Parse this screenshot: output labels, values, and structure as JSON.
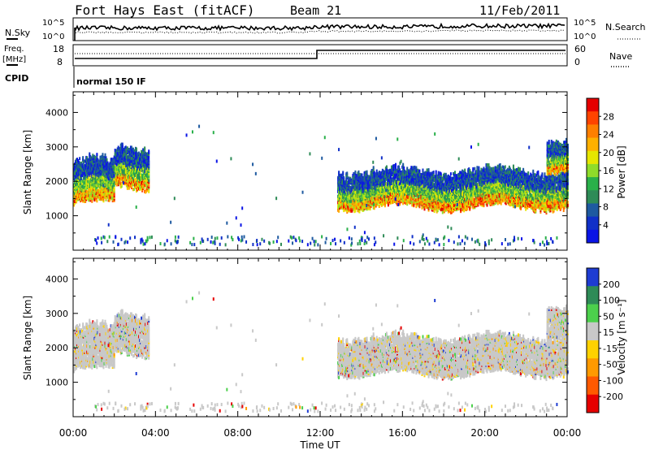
{
  "header": {
    "station": "Fort Hays East (fitACF)",
    "beam": "Beam 21",
    "date": "11/Feb/2011"
  },
  "status_panel": {
    "nsky_label": "N.Sky",
    "nsearch_label": "N.Search",
    "freq_label": "Freq.",
    "freq_unit": "[MHz]",
    "nave_label": "Nave",
    "cpid_label": "CPID",
    "cpid_value": "normal 150 IF",
    "noise_ticks": [
      "10^5",
      "10^0"
    ],
    "freq_ticks": [
      "18",
      "8"
    ],
    "nave_ticks": [
      "60",
      "0"
    ]
  },
  "colorbars": {
    "power": {
      "label": "Power [dB]",
      "ticks": [
        "28",
        "24",
        "20",
        "16",
        "12",
        "8",
        "4"
      ],
      "colors": [
        "#e60000",
        "#ff4400",
        "#ff7f00",
        "#ffb000",
        "#e6e600",
        "#8fdc2a",
        "#2ab04a",
        "#2e8b57",
        "#1e5aa0",
        "#1030c8",
        "#0a14e6"
      ]
    },
    "velocity": {
      "label": "Velocity [m s⁻¹]",
      "ticks": [
        "200",
        "100",
        "50",
        "15",
        "-15",
        "-50",
        "-100",
        "-200"
      ],
      "colors": [
        "#1e3cd2",
        "#2e8b57",
        "#4cd04c",
        "#c8c8c8",
        "#ffd200",
        "#ff9a00",
        "#ff5a00",
        "#e60000"
      ]
    }
  },
  "chart_data": [
    {
      "type": "heatmap",
      "quantity": "Power",
      "ylabel": "Slant Range [km]",
      "ylim": [
        0,
        4600
      ],
      "yticks": [
        1000,
        2000,
        3000,
        4000
      ],
      "xlim_hours": [
        0,
        24
      ],
      "colorbar_label": "Power [dB]",
      "colorbar_ticks": [
        28,
        24,
        20,
        16,
        12,
        8,
        4
      ],
      "echo_regions": [
        {
          "t_start": "00:00",
          "t_end": "02:00",
          "range_km": [
            1300,
            2700
          ]
        },
        {
          "t_start": "02:00",
          "t_end": "03:40",
          "range_km": [
            1800,
            3100
          ]
        },
        {
          "t_start": "12:50",
          "t_end": "24:00",
          "range_km": [
            1200,
            2400
          ]
        },
        {
          "t_start": "23:00",
          "t_end": "24:00",
          "range_km": [
            2300,
            3300
          ]
        }
      ]
    },
    {
      "type": "heatmap",
      "quantity": "Velocity",
      "ylabel": "Slant Range [km]",
      "ylim": [
        0,
        4600
      ],
      "yticks": [
        1000,
        2000,
        3000,
        4000
      ],
      "xlabel": "Time UT",
      "xticks": [
        "00:00",
        "04:00",
        "08:00",
        "12:00",
        "16:00",
        "20:00",
        "00:00"
      ],
      "colorbar_label": "Velocity [m s⁻¹]",
      "colorbar_ticks": [
        200,
        100,
        50,
        15,
        -15,
        -50,
        -100,
        -200
      ]
    }
  ]
}
